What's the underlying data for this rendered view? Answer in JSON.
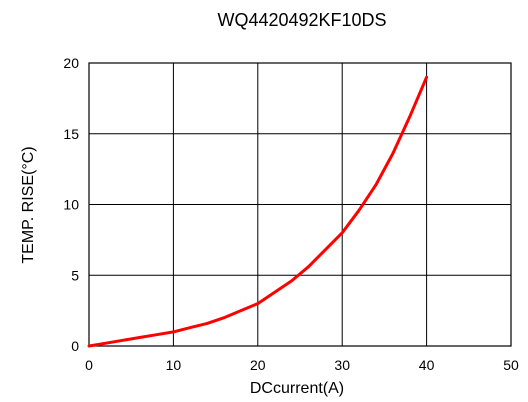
{
  "chart_data": {
    "type": "line",
    "title": "WQ4420492KF10DS",
    "xlabel": "DCcurrent(A)",
    "ylabel": "TEMP. RISE(°C)",
    "xlim": [
      0,
      50
    ],
    "ylim": [
      0,
      20
    ],
    "xticks": [
      "0",
      "10",
      "20",
      "30",
      "40",
      "50"
    ],
    "yticks": [
      "0",
      "5",
      "10",
      "15",
      "20"
    ],
    "grid": true,
    "series": [
      {
        "color": "#ff0000",
        "x": [
          0,
          2,
          4,
          6,
          8,
          10,
          12,
          14,
          16,
          18,
          20,
          22,
          24,
          26,
          28,
          30,
          32,
          34,
          36,
          38,
          40
        ],
        "y": [
          0,
          0.2,
          0.4,
          0.6,
          0.8,
          1.0,
          1.3,
          1.6,
          2.0,
          2.5,
          3.0,
          3.8,
          4.6,
          5.6,
          6.8,
          8.0,
          9.6,
          11.4,
          13.6,
          16.2,
          19.0
        ]
      }
    ]
  }
}
